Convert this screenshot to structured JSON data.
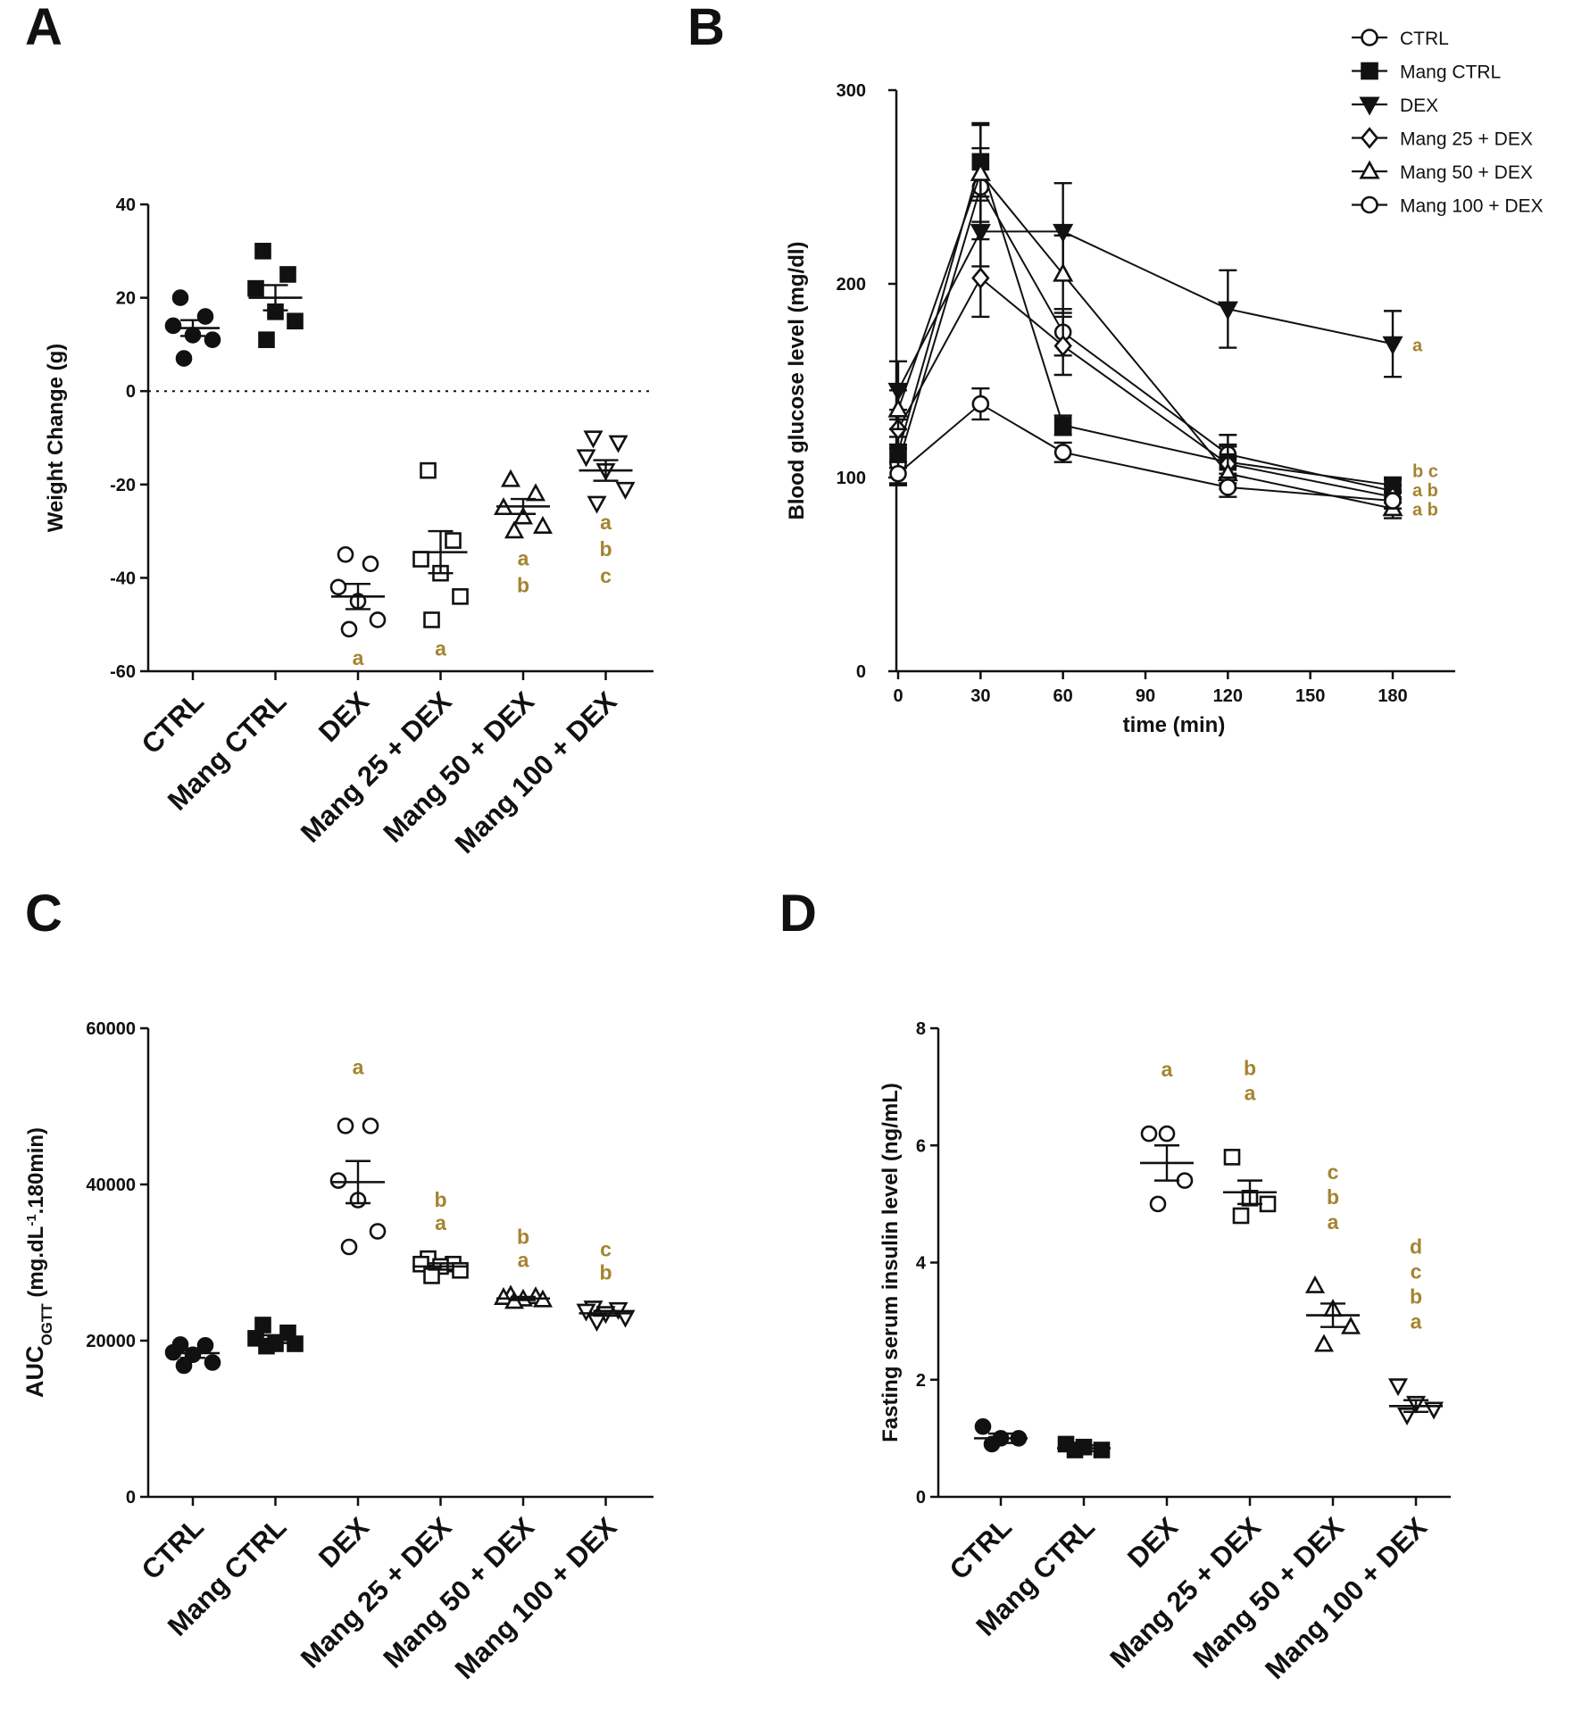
{
  "colors": {
    "ink": "#111111",
    "letters": "#a58430"
  },
  "panels": {
    "A": "A",
    "B": "B",
    "C": "C",
    "D": "D"
  },
  "chart_data": [
    {
      "panel": "A",
      "type": "scatter",
      "ylabel": "Weight Change (g)",
      "ylim": [
        -60,
        40
      ],
      "yticks": [
        40,
        20,
        0,
        -20,
        -40,
        -60
      ],
      "reference_line": 0,
      "categories": [
        "CTRL",
        "Mang CTRL",
        "DEX",
        "Mang 25 + DEX",
        "Mang 50 + DEX",
        "Mang 100 + DEX"
      ],
      "markers": [
        "circle-filled",
        "square-filled",
        "circle-open",
        "square-open",
        "triangle-up-open",
        "triangle-down-open"
      ],
      "points": [
        [
          20,
          16,
          14,
          12,
          11,
          7
        ],
        [
          30,
          25,
          22,
          17,
          15,
          11
        ],
        [
          -35,
          -37,
          -42,
          -45,
          -49,
          -51
        ],
        [
          -17,
          -32,
          -36,
          -39,
          -44,
          -49
        ],
        [
          -19,
          -22,
          -25,
          -27,
          -29,
          -30
        ],
        [
          -10,
          -11,
          -14,
          -17,
          -21,
          -24
        ]
      ],
      "means": [
        13.5,
        20,
        -44,
        -34.5,
        -24.7,
        -17
      ],
      "sem": [
        1.7,
        2.7,
        2.7,
        4.5,
        1.6,
        2.2
      ],
      "letters": [
        [],
        [],
        [
          "a"
        ],
        [
          "a"
        ],
        [
          "a",
          "b"
        ],
        [
          "a",
          "b",
          "c"
        ]
      ]
    },
    {
      "panel": "B",
      "type": "line",
      "xlabel": "time (min)",
      "ylabel": "Blood glucose level (mg/dl)",
      "xlim": [
        0,
        195
      ],
      "ylim": [
        0,
        300
      ],
      "xticks": [
        0,
        30,
        60,
        90,
        120,
        150,
        180
      ],
      "yticks": [
        0,
        100,
        200,
        300
      ],
      "x": [
        0,
        30,
        60,
        120,
        180
      ],
      "series": [
        {
          "name": "CTRL",
          "marker": "circle-open",
          "values": [
            107,
            250,
            175,
            112,
            93
          ],
          "err": [
            10,
            20,
            12,
            10,
            6
          ]
        },
        {
          "name": "Mang CTRL",
          "marker": "square-filled",
          "values": [
            113,
            263,
            127,
            108,
            96
          ],
          "err": [
            8,
            20,
            5,
            8,
            4
          ]
        },
        {
          "name": "DEX",
          "marker": "triangle-down-filled",
          "values": [
            145,
            227,
            227,
            187,
            169
          ],
          "err": [
            15,
            18,
            25,
            20,
            17
          ]
        },
        {
          "name": "Mang 25 + DEX",
          "marker": "diamond-open",
          "values": [
            125,
            203,
            168,
            107,
            90
          ],
          "err": [
            10,
            20,
            15,
            10,
            6
          ]
        },
        {
          "name": "Mang 50 + DEX",
          "marker": "triangle-up-open",
          "values": [
            135,
            257,
            205,
            102,
            84
          ],
          "err": [
            10,
            25,
            20,
            8,
            5
          ]
        },
        {
          "name": "Mang 100 + DEX",
          "marker": "circle-open",
          "values": [
            102,
            138,
            113,
            95,
            88
          ],
          "err": [
            6,
            8,
            5,
            5,
            4
          ]
        }
      ],
      "letters": [
        {
          "label": "a",
          "y": 169
        },
        {
          "label": "b c",
          "y": 104
        },
        {
          "label": "a b",
          "y": 94
        },
        {
          "label": "a b",
          "y": 84
        }
      ]
    },
    {
      "panel": "C",
      "type": "scatter",
      "ylabel_main": "AUC",
      "ylabel_sub": "OGTT",
      "ylabel_tail": " (mg.dL",
      "ylabel_sup": "-1",
      "ylabel_end": ".180min)",
      "ylim": [
        0,
        60000
      ],
      "yticks": [
        60000,
        40000,
        20000,
        0
      ],
      "categories": [
        "CTRL",
        "Mang CTRL",
        "DEX",
        "Mang 25 + DEX",
        "Mang 50 + DEX",
        "Mang 100 + DEX"
      ],
      "markers": [
        "circle-filled",
        "square-filled",
        "circle-open",
        "square-open",
        "triangle-up-open",
        "triangle-down-open"
      ],
      "points": [
        [
          19500,
          19400,
          18500,
          18200,
          17200,
          16800
        ],
        [
          22000,
          21000,
          20300,
          19600,
          19600,
          19300
        ],
        [
          47500,
          47500,
          40500,
          38000,
          34000,
          32000
        ],
        [
          30500,
          29800,
          29800,
          29500,
          29000,
          28300
        ],
        [
          25800,
          25600,
          25500,
          25300,
          25200,
          25000
        ],
        [
          24200,
          24000,
          23800,
          23500,
          23000,
          22500
        ]
      ],
      "means": [
        18400,
        20200,
        40300,
        29500,
        25400,
        23500
      ],
      "sem": [
        600,
        500,
        2700,
        400,
        200,
        300
      ],
      "letters": [
        [],
        [],
        [
          "a"
        ],
        [
          "b",
          "a"
        ],
        [
          "b",
          "a"
        ],
        [
          "c",
          "b"
        ]
      ]
    },
    {
      "panel": "D",
      "type": "scatter",
      "ylabel": "Fasting serum insulin level (ng/mL)",
      "ylim": [
        0,
        8
      ],
      "yticks": [
        8,
        6,
        4,
        2,
        0
      ],
      "categories": [
        "CTRL",
        "Mang CTRL",
        "DEX",
        "Mang 25 + DEX",
        "Mang 50 + DEX",
        "Mang 100 + DEX"
      ],
      "markers": [
        "circle-filled",
        "square-filled",
        "circle-open",
        "square-open",
        "triangle-up-open",
        "triangle-down-open"
      ],
      "points": [
        [
          1.2,
          1.0,
          1.0,
          0.9
        ],
        [
          0.9,
          0.85,
          0.8,
          0.8
        ],
        [
          6.2,
          6.2,
          5.4,
          5.0
        ],
        [
          5.8,
          5.1,
          5.0,
          4.8
        ],
        [
          3.6,
          3.2,
          2.9,
          2.6
        ],
        [
          1.9,
          1.6,
          1.5,
          1.4
        ]
      ],
      "means": [
        1.0,
        0.83,
        5.7,
        5.2,
        3.1,
        1.55
      ],
      "sem": [
        0.08,
        0.05,
        0.3,
        0.2,
        0.2,
        0.1
      ],
      "letters": [
        [],
        [],
        [
          "a"
        ],
        [
          "b",
          "a"
        ],
        [
          "c",
          "b",
          "a"
        ],
        [
          "d",
          "c",
          "b",
          "a"
        ]
      ]
    }
  ]
}
